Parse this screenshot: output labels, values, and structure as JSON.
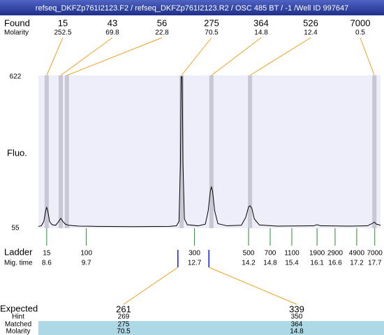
{
  "chart_data": {
    "type": "line",
    "title": "refseq_DKFZp761I2123.F2 / refseq_DKFZp761I2123.R2 / OSC 485 BT  / -1  /Well ID 997647",
    "y_label": "Fluo.",
    "found": {
      "label": "Found",
      "molarity_label": "Molarity",
      "sizes": [
        15,
        43,
        56,
        275,
        364,
        526,
        7000
      ],
      "molarity": [
        252.5,
        69.8,
        22.8,
        70.5,
        14.8,
        12.4,
        0.5
      ],
      "times": [
        8.6,
        8.99,
        9.16,
        12.34,
        13.17,
        14.24,
        17.69
      ]
    },
    "ladder": {
      "label": "Ladder",
      "time_label": "Mig. time",
      "sizes": [
        15,
        100,
        300,
        500,
        700,
        1100,
        1900,
        2900,
        4900,
        7000
      ],
      "times": [
        8.6,
        9.7,
        12.7,
        14.2,
        14.8,
        15.4,
        16.1,
        16.6,
        17.2,
        17.7
      ]
    },
    "expected": {
      "label": "Expected",
      "hint_label": "Hint",
      "matched_label": "Matched",
      "molarity_label": "Molarity",
      "sizes": [
        261,
        339
      ],
      "hint": [
        269,
        350
      ],
      "matched": [
        275,
        364
      ],
      "molarity": [
        70.5,
        14.8
      ],
      "times": [
        12.24,
        13.1
      ]
    },
    "x": [
      8.37,
      8.45,
      8.52,
      8.57,
      8.6,
      8.63,
      8.68,
      8.75,
      8.85,
      8.93,
      8.99,
      9.05,
      9.12,
      9.2,
      9.5,
      10,
      11,
      12,
      12.2,
      12.27,
      12.31,
      12.33,
      12.36,
      12.38,
      12.42,
      12.5,
      12.8,
      13.0,
      13.08,
      13.14,
      13.17,
      13.2,
      13.26,
      13.35,
      13.6,
      14.0,
      14.12,
      14.2,
      14.24,
      14.29,
      14.36,
      14.5,
      15,
      16,
      16.1,
      16.2,
      17,
      17.5,
      17.62,
      17.69,
      17.75,
      17.86
    ],
    "values": [
      62,
      64,
      80,
      120,
      133,
      120,
      80,
      68,
      66,
      80,
      92,
      80,
      70,
      66,
      63,
      62,
      61,
      62,
      64,
      80,
      300,
      622,
      622,
      300,
      90,
      68,
      64,
      70,
      120,
      195,
      209,
      195,
      120,
      72,
      64,
      66,
      95,
      135,
      139,
      130,
      90,
      67,
      63,
      64,
      68,
      64,
      63,
      64,
      72,
      78,
      70,
      66
    ],
    "color": "#000000",
    "xlim": [
      8.37,
      17.86
    ],
    "ylim": [
      55,
      622
    ],
    "yticks": [
      55,
      622
    ]
  }
}
